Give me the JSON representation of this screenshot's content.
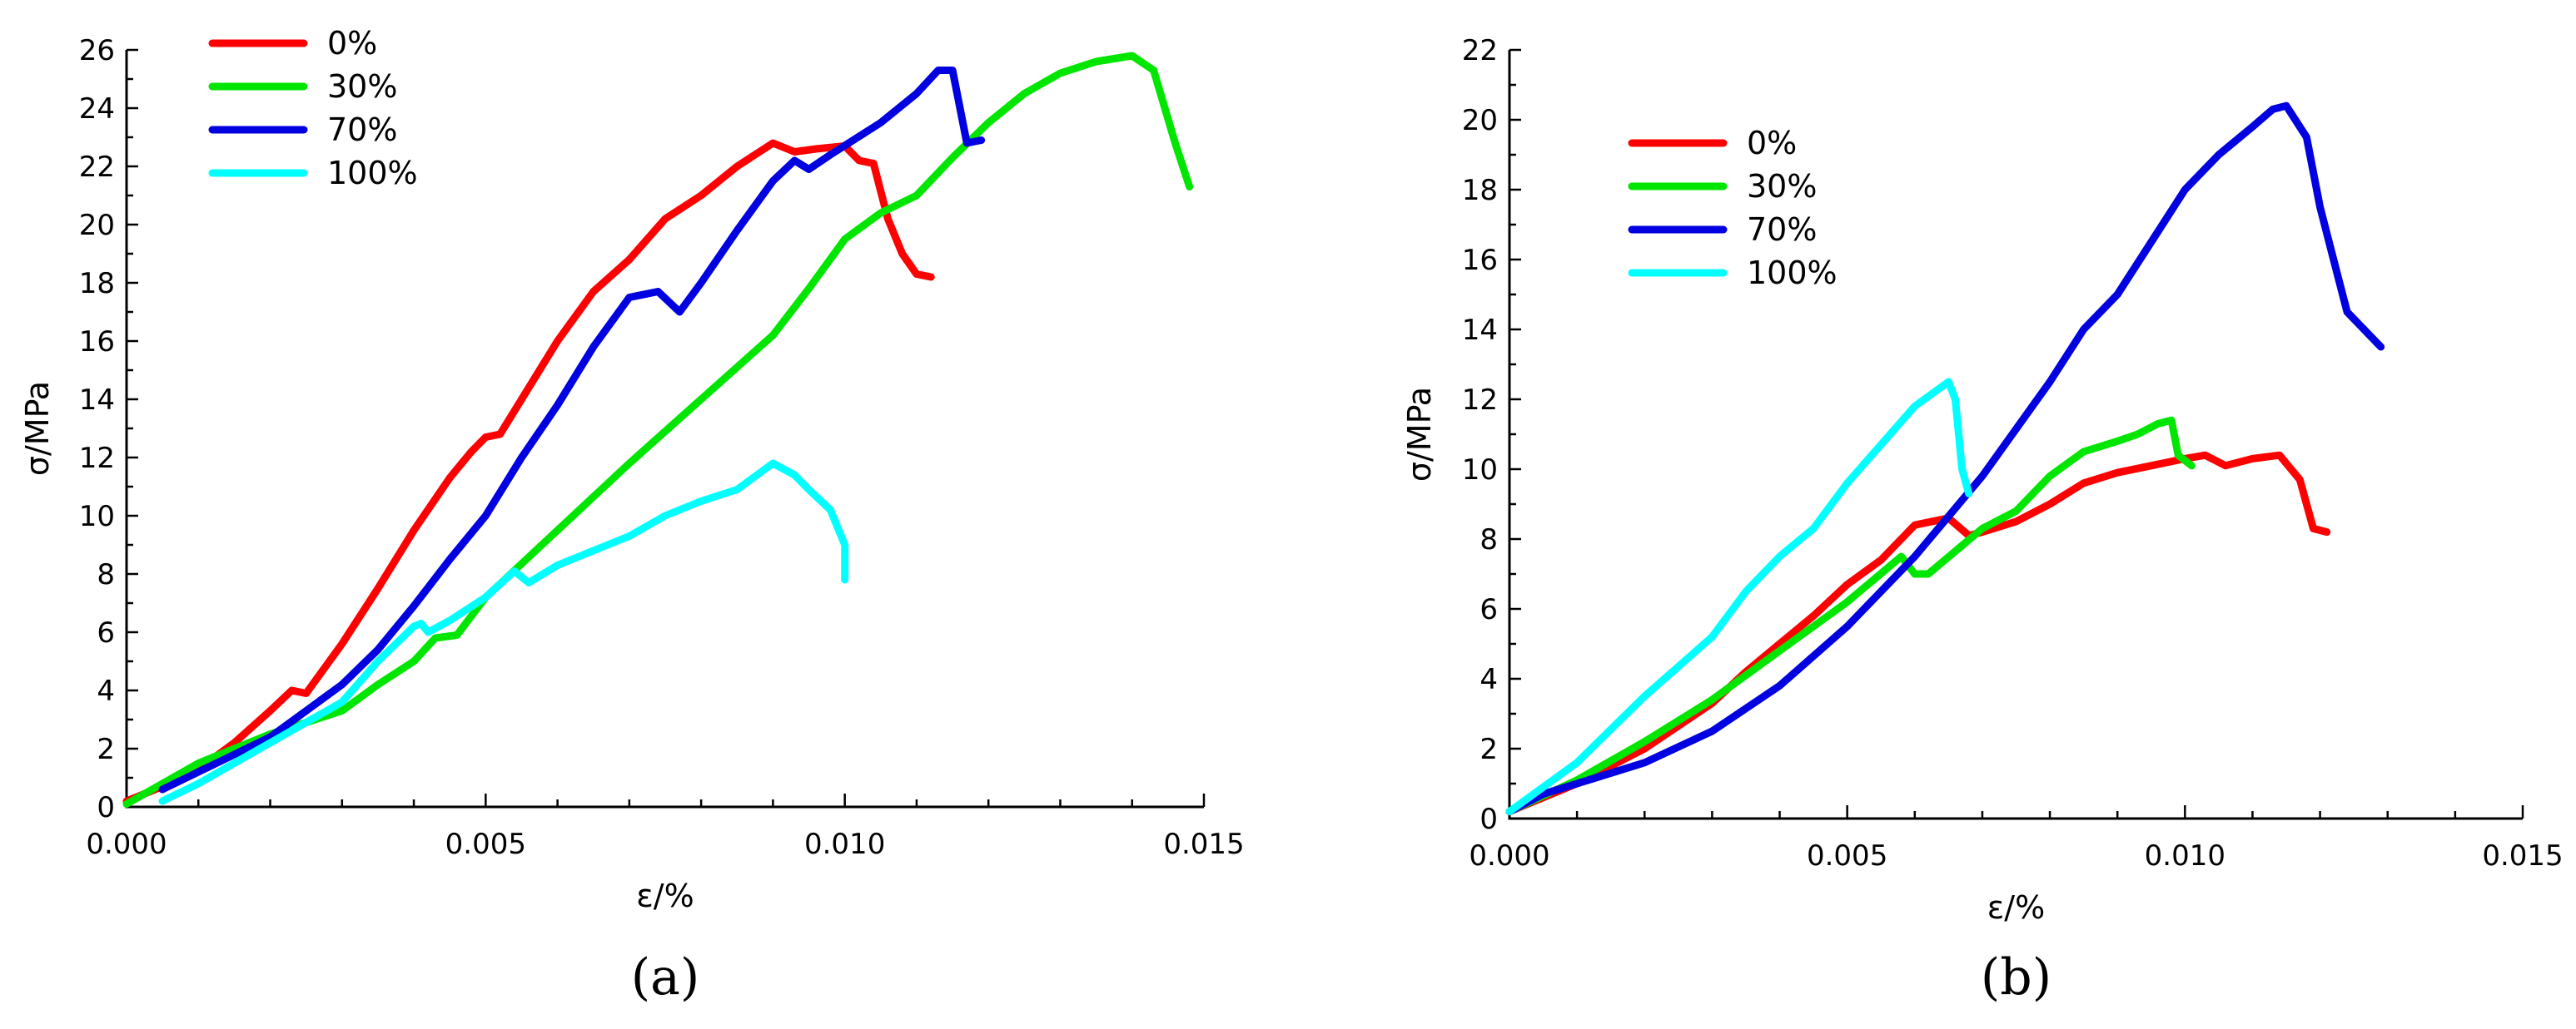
{
  "chart_data": [
    {
      "type": "line",
      "panel": "a",
      "panel_label": "(a)",
      "xlabel": "ε/%",
      "ylabel": "σ/MPa",
      "xlim": [
        0,
        0.015
      ],
      "ylim": [
        0,
        26
      ],
      "xticks": [
        "0.000",
        "0.005",
        "0.010",
        "0.015"
      ],
      "yticks": [
        "0",
        "2",
        "4",
        "6",
        "8",
        "10",
        "12",
        "14",
        "16",
        "18",
        "20",
        "22",
        "24",
        "26"
      ],
      "legend_position": "top-left",
      "series": [
        {
          "name": "0%",
          "color": "#ff0000",
          "points": [
            [
              0,
              0.2
            ],
            [
              0.0005,
              0.7
            ],
            [
              0.001,
              1.3
            ],
            [
              0.0015,
              2.2
            ],
            [
              0.002,
              3.3
            ],
            [
              0.0023,
              4.0
            ],
            [
              0.0025,
              3.9
            ],
            [
              0.003,
              5.6
            ],
            [
              0.0035,
              7.5
            ],
            [
              0.004,
              9.5
            ],
            [
              0.0045,
              11.3
            ],
            [
              0.0048,
              12.2
            ],
            [
              0.005,
              12.7
            ],
            [
              0.0052,
              12.8
            ],
            [
              0.0055,
              14.0
            ],
            [
              0.006,
              16.0
            ],
            [
              0.0065,
              17.7
            ],
            [
              0.007,
              18.8
            ],
            [
              0.0075,
              20.2
            ],
            [
              0.008,
              21.0
            ],
            [
              0.0085,
              22.0
            ],
            [
              0.009,
              22.8
            ],
            [
              0.0093,
              22.5
            ],
            [
              0.0096,
              22.6
            ],
            [
              0.01,
              22.7
            ],
            [
              0.0102,
              22.2
            ],
            [
              0.0104,
              22.1
            ],
            [
              0.0106,
              20.2
            ],
            [
              0.0108,
              19.0
            ],
            [
              0.011,
              18.3
            ],
            [
              0.0112,
              18.2
            ]
          ]
        },
        {
          "name": "30%",
          "color": "#00e600",
          "points": [
            [
              0,
              0.1
            ],
            [
              0.0005,
              0.8
            ],
            [
              0.001,
              1.5
            ],
            [
              0.002,
              2.5
            ],
            [
              0.003,
              3.3
            ],
            [
              0.0035,
              4.2
            ],
            [
              0.004,
              5.0
            ],
            [
              0.0043,
              5.8
            ],
            [
              0.0046,
              5.9
            ],
            [
              0.005,
              7.2
            ],
            [
              0.006,
              9.5
            ],
            [
              0.007,
              11.8
            ],
            [
              0.008,
              14.0
            ],
            [
              0.009,
              16.2
            ],
            [
              0.0095,
              17.8
            ],
            [
              0.01,
              19.5
            ],
            [
              0.0105,
              20.4
            ],
            [
              0.011,
              21.0
            ],
            [
              0.0115,
              22.3
            ],
            [
              0.012,
              23.5
            ],
            [
              0.0125,
              24.5
            ],
            [
              0.013,
              25.2
            ],
            [
              0.0135,
              25.6
            ],
            [
              0.014,
              25.8
            ],
            [
              0.0143,
              25.3
            ],
            [
              0.0146,
              22.8
            ],
            [
              0.0148,
              21.3
            ]
          ]
        },
        {
          "name": "70%",
          "color": "#0000e0",
          "points": [
            [
              0.0005,
              0.6
            ],
            [
              0.001,
              1.2
            ],
            [
              0.002,
              2.4
            ],
            [
              0.003,
              4.2
            ],
            [
              0.0035,
              5.4
            ],
            [
              0.0038,
              6.3
            ],
            [
              0.004,
              6.9
            ],
            [
              0.0045,
              8.5
            ],
            [
              0.005,
              10.0
            ],
            [
              0.0055,
              12.0
            ],
            [
              0.006,
              13.8
            ],
            [
              0.0065,
              15.8
            ],
            [
              0.007,
              17.5
            ],
            [
              0.0074,
              17.7
            ],
            [
              0.0077,
              17.0
            ],
            [
              0.008,
              18.0
            ],
            [
              0.0085,
              19.8
            ],
            [
              0.009,
              21.5
            ],
            [
              0.0093,
              22.2
            ],
            [
              0.0095,
              21.9
            ],
            [
              0.0098,
              22.4
            ],
            [
              0.0105,
              23.5
            ],
            [
              0.011,
              24.5
            ],
            [
              0.0113,
              25.3
            ],
            [
              0.0115,
              25.3
            ],
            [
              0.0117,
              22.8
            ],
            [
              0.0119,
              22.9
            ]
          ]
        },
        {
          "name": "100%",
          "color": "#00ffff",
          "points": [
            [
              0.0005,
              0.2
            ],
            [
              0.001,
              0.8
            ],
            [
              0.002,
              2.2
            ],
            [
              0.003,
              3.6
            ],
            [
              0.0035,
              5.0
            ],
            [
              0.004,
              6.2
            ],
            [
              0.0041,
              6.3
            ],
            [
              0.0042,
              6.0
            ],
            [
              0.0045,
              6.4
            ],
            [
              0.005,
              7.2
            ],
            [
              0.0054,
              8.1
            ],
            [
              0.0056,
              7.7
            ],
            [
              0.006,
              8.3
            ],
            [
              0.0065,
              8.8
            ],
            [
              0.007,
              9.3
            ],
            [
              0.0075,
              10.0
            ],
            [
              0.008,
              10.5
            ],
            [
              0.0085,
              10.9
            ],
            [
              0.009,
              11.8
            ],
            [
              0.0093,
              11.4
            ],
            [
              0.0095,
              10.9
            ],
            [
              0.0098,
              10.2
            ],
            [
              0.01,
              9.0
            ],
            [
              0.01,
              7.8
            ]
          ]
        }
      ]
    },
    {
      "type": "line",
      "panel": "b",
      "panel_label": "(b)",
      "xlabel": "ε/%",
      "ylabel": "σ/MPa",
      "xlim": [
        0,
        0.015
      ],
      "ylim": [
        0,
        22
      ],
      "xticks": [
        "0.000",
        "0.005",
        "0.010",
        "0.015"
      ],
      "yticks": [
        "0",
        "2",
        "4",
        "6",
        "8",
        "10",
        "12",
        "14",
        "16",
        "18",
        "20",
        "22"
      ],
      "legend_position": "top-left",
      "series": [
        {
          "name": "0%",
          "color": "#ff0000",
          "points": [
            [
              0,
              0.2
            ],
            [
              0.001,
              1.0
            ],
            [
              0.002,
              2.0
            ],
            [
              0.003,
              3.3
            ],
            [
              0.0035,
              4.2
            ],
            [
              0.004,
              5.0
            ],
            [
              0.0045,
              5.8
            ],
            [
              0.005,
              6.7
            ],
            [
              0.0055,
              7.4
            ],
            [
              0.006,
              8.4
            ],
            [
              0.0065,
              8.6
            ],
            [
              0.0068,
              8.1
            ],
            [
              0.007,
              8.2
            ],
            [
              0.0075,
              8.5
            ],
            [
              0.008,
              9.0
            ],
            [
              0.0085,
              9.6
            ],
            [
              0.009,
              9.9
            ],
            [
              0.0095,
              10.1
            ],
            [
              0.01,
              10.3
            ],
            [
              0.0103,
              10.4
            ],
            [
              0.0106,
              10.1
            ],
            [
              0.011,
              10.3
            ],
            [
              0.0114,
              10.4
            ],
            [
              0.0117,
              9.7
            ],
            [
              0.0119,
              8.3
            ],
            [
              0.0121,
              8.2
            ]
          ]
        },
        {
          "name": "30%",
          "color": "#00e600",
          "points": [
            [
              0,
              0.2
            ],
            [
              0.001,
              1.1
            ],
            [
              0.002,
              2.2
            ],
            [
              0.003,
              3.4
            ],
            [
              0.004,
              4.8
            ],
            [
              0.005,
              6.2
            ],
            [
              0.0058,
              7.5
            ],
            [
              0.006,
              7.0
            ],
            [
              0.0062,
              7.0
            ],
            [
              0.007,
              8.3
            ],
            [
              0.0075,
              8.8
            ],
            [
              0.008,
              9.8
            ],
            [
              0.0085,
              10.5
            ],
            [
              0.009,
              10.8
            ],
            [
              0.0093,
              11.0
            ],
            [
              0.0096,
              11.3
            ],
            [
              0.0098,
              11.4
            ],
            [
              0.0099,
              10.4
            ],
            [
              0.0101,
              10.1
            ]
          ]
        },
        {
          "name": "70%",
          "color": "#0000e0",
          "points": [
            [
              0,
              0.2
            ],
            [
              0.0005,
              0.7
            ],
            [
              0.001,
              1.0
            ],
            [
              0.002,
              1.6
            ],
            [
              0.003,
              2.5
            ],
            [
              0.004,
              3.8
            ],
            [
              0.005,
              5.5
            ],
            [
              0.006,
              7.5
            ],
            [
              0.007,
              9.8
            ],
            [
              0.008,
              12.5
            ],
            [
              0.0085,
              14.0
            ],
            [
              0.009,
              15.0
            ],
            [
              0.0095,
              16.5
            ],
            [
              0.01,
              18.0
            ],
            [
              0.0105,
              19.0
            ],
            [
              0.011,
              19.8
            ],
            [
              0.0113,
              20.3
            ],
            [
              0.0115,
              20.4
            ],
            [
              0.0118,
              19.5
            ],
            [
              0.012,
              17.5
            ],
            [
              0.0122,
              16.0
            ],
            [
              0.0124,
              14.5
            ],
            [
              0.0129,
              13.5
            ]
          ]
        },
        {
          "name": "100%",
          "color": "#00ffff",
          "points": [
            [
              0,
              0.2
            ],
            [
              0.001,
              1.6
            ],
            [
              0.002,
              3.5
            ],
            [
              0.003,
              5.2
            ],
            [
              0.0035,
              6.5
            ],
            [
              0.004,
              7.5
            ],
            [
              0.0045,
              8.3
            ],
            [
              0.005,
              9.6
            ],
            [
              0.0055,
              10.7
            ],
            [
              0.006,
              11.8
            ],
            [
              0.0065,
              12.5
            ],
            [
              0.0066,
              12.0
            ],
            [
              0.0067,
              10.0
            ],
            [
              0.0068,
              9.3
            ]
          ]
        }
      ]
    }
  ]
}
